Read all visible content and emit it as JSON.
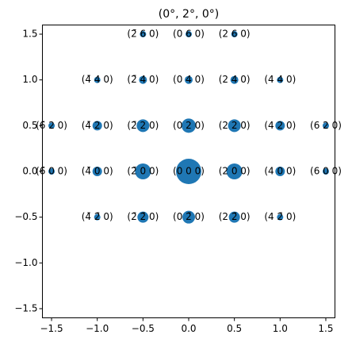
{
  "chart_data": {
    "type": "scatter",
    "title": "(0°, 2°, 0°)",
    "color": "#1f77b4",
    "xlim": [
      -1.6,
      1.6
    ],
    "ylim": [
      -1.6,
      1.6
    ],
    "xticks": [
      {
        "value": -1.5,
        "label": "−1.5"
      },
      {
        "value": -1.0,
        "label": "−1.0"
      },
      {
        "value": -0.5,
        "label": "−0.5"
      },
      {
        "value": 0,
        "label": "0.0"
      },
      0.5,
      {
        "value": 1,
        "label": "1.0"
      },
      1.5
    ],
    "yticks": [
      {
        "value": -1.5,
        "label": "−1.5"
      },
      {
        "value": -1.0,
        "label": "−1.0"
      },
      {
        "value": -0.5,
        "label": "−0.5"
      },
      {
        "value": 0,
        "label": "0.0"
      },
      0.5,
      {
        "value": 1,
        "label": "1.0"
      },
      1.5
    ],
    "x": [
      -0.5,
      0,
      0.5,
      -1,
      -0.5,
      0,
      0.5,
      1,
      -1.5,
      -1,
      -0.5,
      0,
      0.5,
      1,
      1.5,
      -1.5,
      -1,
      -0.5,
      0,
      0.5,
      1,
      1.5,
      -1,
      -0.5,
      0,
      0.5,
      1
    ],
    "y": [
      1.5,
      1.5,
      1.5,
      1,
      1,
      1,
      1,
      1,
      0.5,
      0.5,
      0.5,
      0.5,
      0.5,
      0.5,
      0.5,
      0,
      0,
      0,
      0,
      0,
      0,
      0,
      -0.5,
      -0.5,
      -0.5,
      -0.5,
      -0.5
    ],
    "sizes": [
      4,
      4,
      4,
      4,
      5,
      5,
      5,
      4,
      4,
      6,
      8,
      9,
      8,
      6,
      4,
      4,
      6,
      10,
      16,
      10,
      6,
      4,
      4,
      7,
      8,
      7,
      4
    ],
    "labels": [
      "(2̄ 6 0)",
      "(0 6 0)",
      "(2 6 0)",
      "(4̄ 4 0)",
      "(2̄ 4 0)",
      "(0 4 0)",
      "(2 4 0)",
      "(4 4 0)",
      "(6̄ 2 0)",
      "(4̄ 2 0)",
      "(2̄ 2 0)",
      "(0 2 0)",
      "(2 2 0)",
      "(4 2 0)",
      "(6 2 0)",
      "(6̄ 0 0)",
      "(4̄ 0 0)",
      "(2̄ 0 0)",
      "(0 0 0)",
      "(2 0 0)",
      "(4 0 0)",
      "(6 0 0)",
      "(4̄ 2̄ 0)",
      "(2̄ 2̄ 0)",
      "(0 2̄ 0)",
      "(2 2̄ 0)",
      "(4 2̄ 0)"
    ]
  }
}
